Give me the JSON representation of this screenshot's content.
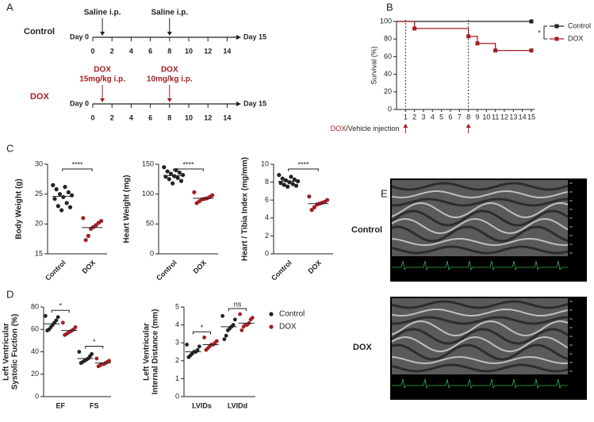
{
  "panel_labels": [
    "A",
    "B",
    "C",
    "D",
    "E"
  ],
  "timeline": {
    "start": "Day 0",
    "end": "Day 15",
    "ticks": [
      0,
      2,
      4,
      6,
      8,
      10,
      12,
      14
    ],
    "groups": [
      {
        "name": "Control",
        "color": "#222222",
        "doses": [
          {
            "day": 1,
            "lines": [
              "Saline i.p."
            ]
          },
          {
            "day": 8,
            "lines": [
              "Saline i.p."
            ]
          }
        ]
      },
      {
        "name": "DOX",
        "color": "#a31f24",
        "doses": [
          {
            "day": 1,
            "lines": [
              "DOX",
              "15mg/kg i.p."
            ]
          },
          {
            "day": 8,
            "lines": [
              "DOX",
              "10mg/kg i.p."
            ]
          }
        ]
      }
    ]
  },
  "chart_data": [
    {
      "type": "step",
      "legend": "right",
      "ylabel": [
        "Survival (%)"
      ],
      "x": [
        0,
        2,
        8,
        9,
        11,
        15
      ],
      "xlim": [
        0,
        15
      ],
      "xticks": [
        1,
        2,
        3,
        4,
        5,
        6,
        7,
        8,
        9,
        10,
        11,
        12,
        13,
        14,
        15
      ],
      "ylim": [
        0,
        100
      ],
      "yticks": [
        0,
        20,
        40,
        60,
        80,
        100
      ],
      "vlines": [
        1,
        8
      ],
      "annotation": [
        "DOX",
        "/Vehicle injection"
      ],
      "significance": "*",
      "series": [
        {
          "name": "Control",
          "color": "#222222",
          "marker": "square",
          "values": [
            100,
            100,
            100,
            100,
            100,
            100
          ]
        },
        {
          "name": "DOX",
          "color": "#a31f24",
          "marker": "square",
          "values": [
            100,
            92,
            83,
            75,
            67,
            67
          ]
        }
      ]
    },
    {
      "type": "dot",
      "ylabel": [
        "Body Weight (g)"
      ],
      "categories": [
        "Control",
        "DOX"
      ],
      "colors": [
        "#222222",
        "#a31f24"
      ],
      "points": [
        [
          26.5,
          26.2,
          25.8,
          25.3,
          25.0,
          24.8,
          24.5,
          24.2,
          23.5,
          23.0,
          22.8,
          22.3
        ],
        [
          21.0,
          20.5,
          20.2,
          19.8,
          19.5,
          19.2,
          18.0,
          17.3
        ]
      ],
      "means": [
        24.6,
        19.4
      ],
      "ylim": [
        15,
        30
      ],
      "yticks": [
        15,
        20,
        25,
        30
      ],
      "significance": "****"
    },
    {
      "type": "dot",
      "ylabel": [
        "Heart Weight (mg)"
      ],
      "categories": [
        "Control",
        "DOX"
      ],
      "colors": [
        "#222222",
        "#a31f24"
      ],
      "points": [
        [
          145,
          140,
          138,
          136,
          134,
          132,
          130,
          129,
          127,
          125,
          122,
          118
        ],
        [
          103,
          98,
          95,
          93,
          92,
          91,
          88,
          85
        ]
      ],
      "means": [
        131,
        93
      ],
      "ylim": [
        0,
        150
      ],
      "yticks": [
        0,
        50,
        100,
        150
      ],
      "significance": "****"
    },
    {
      "type": "dot",
      "ylabel": [
        "Heart / Tibia Index (mg/mm)"
      ],
      "categories": [
        "Control",
        "DOX"
      ],
      "colors": [
        "#222222",
        "#a31f24"
      ],
      "points": [
        [
          8.8,
          8.6,
          8.4,
          8.3,
          8.2,
          8.1,
          8.0,
          7.9,
          7.8,
          7.7,
          7.6,
          7.5
        ],
        [
          6.4,
          6.0,
          5.8,
          5.7,
          5.6,
          5.5,
          5.2,
          4.9
        ]
      ],
      "means": [
        8.1,
        5.6
      ],
      "ylim": [
        0,
        10
      ],
      "yticks": [
        0,
        2,
        4,
        6,
        8,
        10
      ],
      "significance": "****"
    },
    {
      "type": "grouped-dot",
      "ylabel": [
        "Left Ventricular",
        "Systolic Fuction (%)"
      ],
      "categories": [
        "EF",
        "FS"
      ],
      "series": [
        {
          "name": "Control",
          "color": "#222222",
          "points": [
            [
              72,
              71,
              68,
              66,
              64,
              62,
              60,
              59
            ],
            [
              40,
              38,
              36,
              34,
              33,
              32,
              31,
              30
            ]
          ],
          "means": [
            65,
            34
          ]
        },
        {
          "name": "DOX",
          "color": "#a31f24",
          "points": [
            [
              66,
              62,
              60,
              59,
              58,
              57,
              56,
              55
            ],
            [
              34,
              32,
              31,
              30,
              29,
              29,
              28,
              27
            ]
          ],
          "means": [
            59,
            30
          ]
        }
      ],
      "ylim": [
        0,
        80
      ],
      "yticks": [
        0,
        20,
        40,
        60,
        80
      ],
      "significance": [
        "*",
        "*"
      ]
    },
    {
      "type": "grouped-dot",
      "legend": "right",
      "ylabel": [
        "Left Ventricular",
        "Internal Distance (mm)"
      ],
      "categories": [
        "LVIDs",
        "LVIDd"
      ],
      "series": [
        {
          "name": "Control",
          "color": "#222222",
          "points": [
            [
              2.9,
              2.8,
              2.6,
              2.5,
              2.5,
              2.4,
              2.3,
              2.2
            ],
            [
              4.5,
              4.3,
              4.0,
              3.9,
              3.8,
              3.7,
              3.4,
              3.2
            ]
          ],
          "means": [
            2.5,
            3.9
          ]
        },
        {
          "name": "DOX",
          "color": "#a31f24",
          "points": [
            [
              3.3,
              3.1,
              3.0,
              2.9,
              2.9,
              2.8,
              2.7,
              2.6
            ],
            [
              4.6,
              4.4,
              4.3,
              4.1,
              4.0,
              4.0,
              3.9,
              3.7
            ]
          ],
          "means": [
            2.9,
            4.1
          ]
        }
      ],
      "ylim": [
        0,
        5
      ],
      "yticks": [
        0,
        1,
        2,
        3,
        4,
        5
      ],
      "significance": [
        "*",
        "ns"
      ]
    }
  ],
  "images": [
    {
      "label": "Control"
    },
    {
      "label": "DOX"
    }
  ]
}
